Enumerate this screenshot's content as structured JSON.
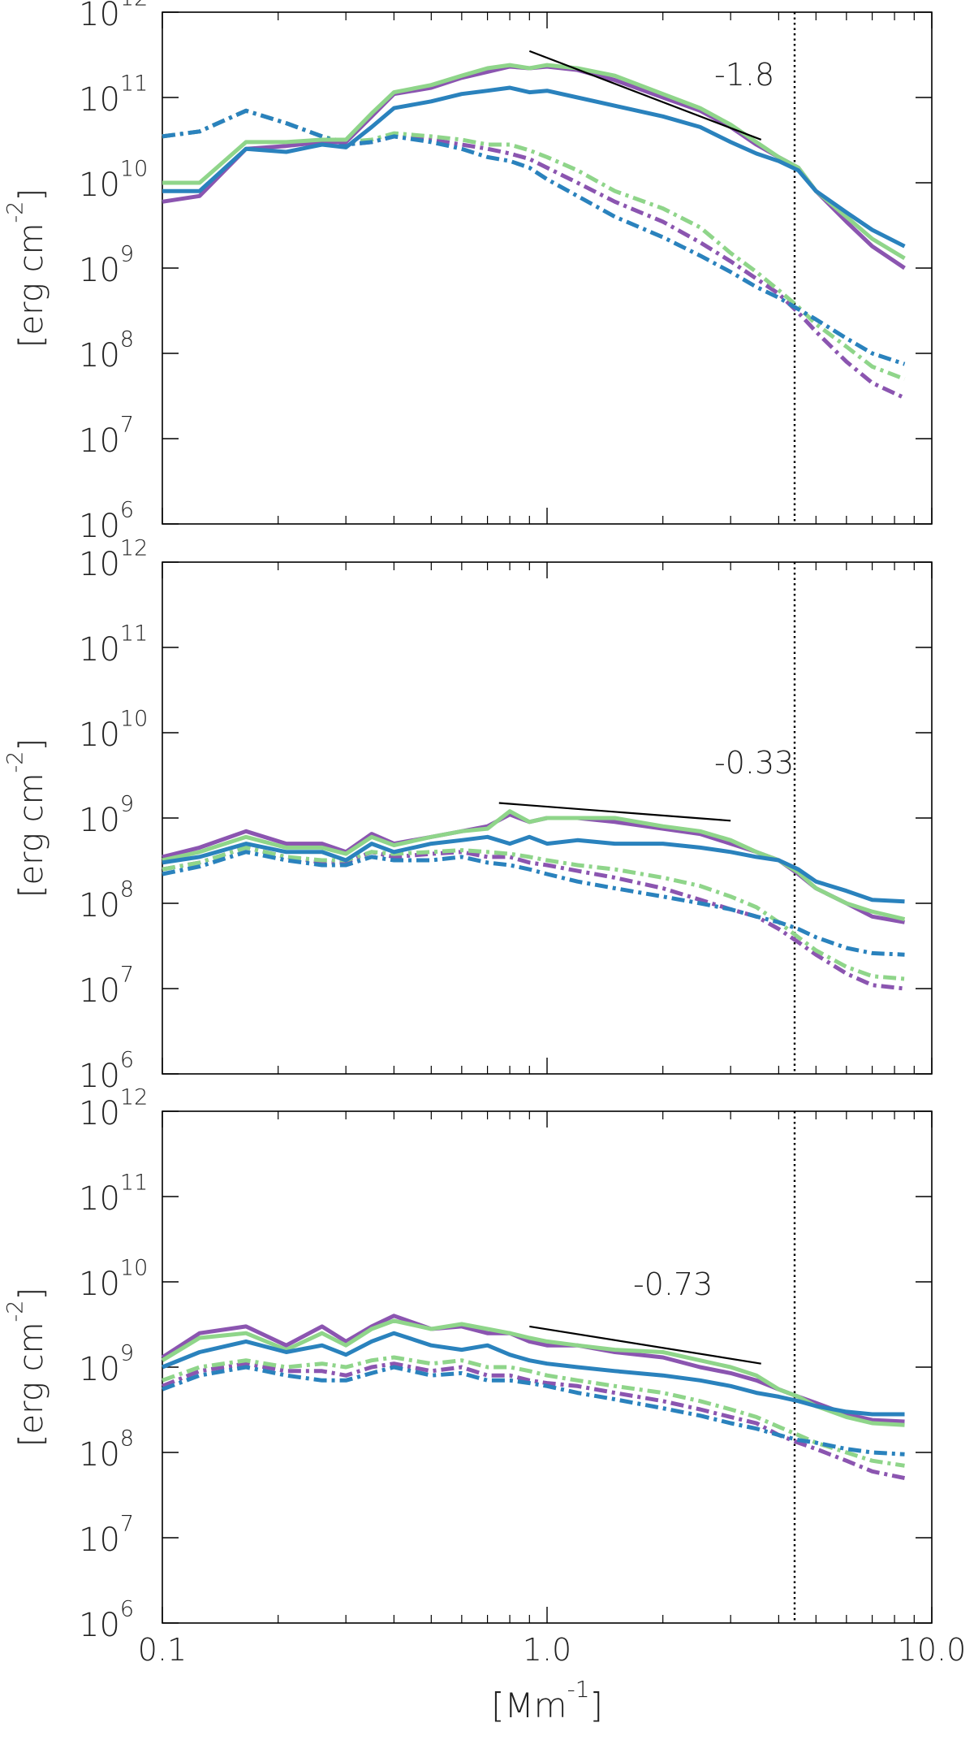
{
  "colors": {
    "purple": "#8b55b0",
    "green": "#8fd58a",
    "blue": "#2a82bd",
    "black": "#000000"
  },
  "xlabel": "[Mm^{-1}]",
  "ylabel": "[erg cm^{-2}]",
  "x_tick_labels": [
    "0.1",
    "1.0",
    "10.0"
  ],
  "y_tick_labels": [
    "10^{12}",
    "10^{11}",
    "10^{10}",
    "10^{9}",
    "10^{8}",
    "10^{7}",
    "10^{6}"
  ],
  "chart_data": [
    {
      "type": "line",
      "xscale": "log",
      "yscale": "log",
      "xlim": [
        0.1,
        10.0
      ],
      "ylim": [
        1000000.0,
        1000000000000.0
      ],
      "vertical_dotted_line_x": 4.4,
      "slope_label": "-1.8",
      "fit_line": {
        "x": [
          0.9,
          3.6
        ],
        "y": [
          350000000000.0,
          32000000000.0
        ]
      },
      "x": [
        0.1,
        0.125,
        0.165,
        0.21,
        0.26,
        0.3,
        0.35,
        0.4,
        0.5,
        0.6,
        0.7,
        0.8,
        0.9,
        1.0,
        1.2,
        1.5,
        2.0,
        2.5,
        3.0,
        3.5,
        4.0,
        4.5,
        5.0,
        6.0,
        7.0,
        8.5
      ],
      "series": [
        {
          "color": "purple",
          "style": "solid",
          "y": [
            6000000000.0,
            7000000000.0,
            25000000000.0,
            27000000000.0,
            30000000000.0,
            30000000000.0,
            60000000000.0,
            110000000000.0,
            130000000000.0,
            170000000000.0,
            200000000000.0,
            230000000000.0,
            220000000000.0,
            230000000000.0,
            210000000000.0,
            160000000000.0,
            100000000000.0,
            70000000000.0,
            45000000000.0,
            28000000000.0,
            20000000000.0,
            15000000000.0,
            8000000000.0,
            3500000000.0,
            1800000000.0,
            1000000000.0
          ]
        },
        {
          "color": "green",
          "style": "solid",
          "y": [
            10000000000.0,
            10000000000.0,
            30000000000.0,
            30000000000.0,
            32000000000.0,
            32000000000.0,
            65000000000.0,
            115000000000.0,
            140000000000.0,
            180000000000.0,
            220000000000.0,
            240000000000.0,
            220000000000.0,
            240000000000.0,
            220000000000.0,
            180000000000.0,
            110000000000.0,
            75000000000.0,
            48000000000.0,
            30000000000.0,
            20000000000.0,
            15000000000.0,
            8000000000.0,
            4000000000.0,
            2200000000.0,
            1300000000.0
          ]
        },
        {
          "color": "blue",
          "style": "solid",
          "y": [
            8000000000.0,
            8000000000.0,
            25000000000.0,
            23000000000.0,
            28000000000.0,
            26000000000.0,
            45000000000.0,
            75000000000.0,
            90000000000.0,
            110000000000.0,
            120000000000.0,
            130000000000.0,
            115000000000.0,
            120000000000.0,
            100000000000.0,
            80000000000.0,
            60000000000.0,
            45000000000.0,
            30000000000.0,
            22000000000.0,
            18000000000.0,
            14000000000.0,
            8000000000.0,
            4500000000.0,
            2800000000.0,
            1800000000.0
          ]
        },
        {
          "color": "purple",
          "style": "dashdot",
          "y": [
            35000000000.0,
            40000000000.0,
            70000000000.0,
            50000000000.0,
            35000000000.0,
            28000000000.0,
            30000000000.0,
            35000000000.0,
            32000000000.0,
            28000000000.0,
            25000000000.0,
            22000000000.0,
            19000000000.0,
            15000000000.0,
            10000000000.0,
            6000000000.0,
            3500000000.0,
            2000000000.0,
            1200000000.0,
            750000000.0,
            500000000.0,
            300000000.0,
            180000000.0,
            80000000.0,
            45000000.0,
            30000000.0
          ]
        },
        {
          "color": "green",
          "style": "dashdot",
          "y": [
            35000000000.0,
            40000000000.0,
            70000000000.0,
            50000000000.0,
            35000000000.0,
            30000000000.0,
            32000000000.0,
            38000000000.0,
            35000000000.0,
            32000000000.0,
            28000000000.0,
            28000000000.0,
            24000000000.0,
            20000000000.0,
            14000000000.0,
            8000000000.0,
            5000000000.0,
            3000000000.0,
            1500000000.0,
            900000000.0,
            550000000.0,
            350000000.0,
            220000000.0,
            120000000.0,
            70000000.0,
            50000000.0
          ]
        },
        {
          "color": "blue",
          "style": "dashdot",
          "y": [
            35000000000.0,
            40000000000.0,
            70000000000.0,
            50000000000.0,
            35000000000.0,
            28000000000.0,
            30000000000.0,
            35000000000.0,
            30000000000.0,
            25000000000.0,
            20000000000.0,
            18000000000.0,
            15000000000.0,
            11000000000.0,
            7000000000.0,
            4000000000.0,
            2300000000.0,
            1400000000.0,
            900000000.0,
            600000000.0,
            450000000.0,
            330000000.0,
            250000000.0,
            150000000.0,
            100000000.0,
            75000000.0
          ]
        }
      ]
    },
    {
      "type": "line",
      "xscale": "log",
      "yscale": "log",
      "xlim": [
        0.1,
        10.0
      ],
      "ylim": [
        1000000.0,
        1000000000000.0
      ],
      "vertical_dotted_line_x": 4.4,
      "slope_label": "-0.33",
      "fit_line": {
        "x": [
          0.75,
          3.0
        ],
        "y": [
          1500000000.0,
          930000000.0
        ]
      },
      "x": [
        0.1,
        0.125,
        0.165,
        0.21,
        0.26,
        0.3,
        0.35,
        0.4,
        0.5,
        0.6,
        0.7,
        0.8,
        0.9,
        1.0,
        1.2,
        1.5,
        2.0,
        2.5,
        3.0,
        3.5,
        4.0,
        4.5,
        5.0,
        6.0,
        7.0,
        8.5
      ],
      "series": [
        {
          "color": "purple",
          "style": "solid",
          "y": [
            350000000.0,
            450000000.0,
            700000000.0,
            500000000.0,
            500000000.0,
            400000000.0,
            650000000.0,
            500000000.0,
            600000000.0,
            700000000.0,
            800000000.0,
            1100000000.0,
            900000000.0,
            1000000000.0,
            1000000000.0,
            900000000.0,
            750000000.0,
            650000000.0,
            500000000.0,
            400000000.0,
            320000000.0,
            220000000.0,
            150000000.0,
            100000000.0,
            70000000.0,
            60000000.0
          ]
        },
        {
          "color": "green",
          "style": "solid",
          "y": [
            320000000.0,
            400000000.0,
            600000000.0,
            450000000.0,
            450000000.0,
            380000000.0,
            600000000.0,
            480000000.0,
            600000000.0,
            700000000.0,
            750000000.0,
            1200000000.0,
            900000000.0,
            1000000000.0,
            1000000000.0,
            1000000000.0,
            800000000.0,
            700000000.0,
            550000000.0,
            400000000.0,
            320000000.0,
            230000000.0,
            150000000.0,
            100000000.0,
            80000000.0,
            65000000.0
          ]
        },
        {
          "color": "blue",
          "style": "solid",
          "y": [
            300000000.0,
            350000000.0,
            500000000.0,
            400000000.0,
            400000000.0,
            320000000.0,
            500000000.0,
            400000000.0,
            500000000.0,
            550000000.0,
            600000000.0,
            500000000.0,
            600000000.0,
            500000000.0,
            550000000.0,
            500000000.0,
            500000000.0,
            450000000.0,
            400000000.0,
            350000000.0,
            320000000.0,
            250000000.0,
            180000000.0,
            140000000.0,
            110000000.0,
            105000000.0
          ]
        },
        {
          "color": "purple",
          "style": "dashdot",
          "y": [
            250000000.0,
            300000000.0,
            450000000.0,
            350000000.0,
            300000000.0,
            300000000.0,
            400000000.0,
            350000000.0,
            380000000.0,
            400000000.0,
            350000000.0,
            350000000.0,
            300000000.0,
            280000000.0,
            240000000.0,
            200000000.0,
            150000000.0,
            110000000.0,
            85000000.0,
            70000000.0,
            50000000.0,
            35000000.0,
            25000000.0,
            15000000.0,
            11000000.0,
            10000000.0
          ]
        },
        {
          "color": "green",
          "style": "dashdot",
          "y": [
            250000000.0,
            300000000.0,
            450000000.0,
            350000000.0,
            320000000.0,
            320000000.0,
            400000000.0,
            380000000.0,
            400000000.0,
            420000000.0,
            400000000.0,
            380000000.0,
            350000000.0,
            320000000.0,
            280000000.0,
            250000000.0,
            200000000.0,
            160000000.0,
            120000000.0,
            90000000.0,
            60000000.0,
            40000000.0,
            28000000.0,
            18000000.0,
            14000000.0,
            13000000.0
          ]
        },
        {
          "color": "blue",
          "style": "dashdot",
          "y": [
            220000000.0,
            270000000.0,
            400000000.0,
            320000000.0,
            280000000.0,
            280000000.0,
            350000000.0,
            320000000.0,
            320000000.0,
            350000000.0,
            300000000.0,
            280000000.0,
            250000000.0,
            220000000.0,
            180000000.0,
            150000000.0,
            120000000.0,
            100000000.0,
            85000000.0,
            70000000.0,
            60000000.0,
            50000000.0,
            40000000.0,
            30000000.0,
            26000000.0,
            25000000.0
          ]
        }
      ]
    },
    {
      "type": "line",
      "xscale": "log",
      "yscale": "log",
      "xlim": [
        0.1,
        10.0
      ],
      "ylim": [
        1000000.0,
        1000000000000.0
      ],
      "vertical_dotted_line_x": 4.4,
      "slope_label": "-0.73",
      "fit_line": {
        "x": [
          0.9,
          3.6
        ],
        "y": [
          3000000000.0,
          1100000000.0
        ]
      },
      "x": [
        0.1,
        0.125,
        0.165,
        0.21,
        0.26,
        0.3,
        0.35,
        0.4,
        0.5,
        0.6,
        0.7,
        0.8,
        0.9,
        1.0,
        1.2,
        1.5,
        2.0,
        2.5,
        3.0,
        3.5,
        4.0,
        4.5,
        5.0,
        6.0,
        7.0,
        8.5
      ],
      "series": [
        {
          "color": "purple",
          "style": "solid",
          "y": [
            1300000000.0,
            2500000000.0,
            3000000000.0,
            1800000000.0,
            3000000000.0,
            2000000000.0,
            3000000000.0,
            4000000000.0,
            2800000000.0,
            3000000000.0,
            2500000000.0,
            2500000000.0,
            2000000000.0,
            1800000000.0,
            1800000000.0,
            1500000000.0,
            1300000000.0,
            1000000000.0,
            850000000.0,
            700000000.0,
            550000000.0,
            450000000.0,
            380000000.0,
            280000000.0,
            240000000.0,
            230000000.0
          ]
        },
        {
          "color": "green",
          "style": "solid",
          "y": [
            1200000000.0,
            2200000000.0,
            2500000000.0,
            1600000000.0,
            2500000000.0,
            1800000000.0,
            2800000000.0,
            3500000000.0,
            2800000000.0,
            3200000000.0,
            2800000000.0,
            2500000000.0,
            2200000000.0,
            2000000000.0,
            1800000000.0,
            1600000000.0,
            1500000000.0,
            1200000000.0,
            1000000000.0,
            800000000.0,
            550000000.0,
            450000000.0,
            350000000.0,
            260000000.0,
            220000000.0,
            210000000.0
          ]
        },
        {
          "color": "blue",
          "style": "solid",
          "y": [
            1000000000.0,
            1500000000.0,
            2000000000.0,
            1500000000.0,
            1800000000.0,
            1400000000.0,
            2000000000.0,
            2500000000.0,
            1800000000.0,
            1600000000.0,
            1800000000.0,
            1400000000.0,
            1200000000.0,
            1100000000.0,
            1000000000.0,
            900000000.0,
            800000000.0,
            700000000.0,
            600000000.0,
            500000000.0,
            450000000.0,
            400000000.0,
            350000000.0,
            300000000.0,
            280000000.0,
            280000000.0
          ]
        },
        {
          "color": "purple",
          "style": "dashdot",
          "y": [
            600000000.0,
            900000000.0,
            1100000000.0,
            900000000.0,
            900000000.0,
            800000000.0,
            1000000000.0,
            1100000000.0,
            900000000.0,
            1000000000.0,
            800000000.0,
            800000000.0,
            700000000.0,
            650000000.0,
            600000000.0,
            500000000.0,
            400000000.0,
            320000000.0,
            260000000.0,
            220000000.0,
            160000000.0,
            130000000.0,
            110000000.0,
            80000000.0,
            60000000.0,
            50000000.0
          ]
        },
        {
          "color": "green",
          "style": "dashdot",
          "y": [
            700000000.0,
            1000000000.0,
            1200000000.0,
            1000000000.0,
            1100000000.0,
            1000000000.0,
            1200000000.0,
            1300000000.0,
            1100000000.0,
            1200000000.0,
            1000000000.0,
            1000000000.0,
            900000000.0,
            800000000.0,
            700000000.0,
            600000000.0,
            500000000.0,
            400000000.0,
            320000000.0,
            260000000.0,
            200000000.0,
            160000000.0,
            130000000.0,
            100000000.0,
            80000000.0,
            70000000.0
          ]
        },
        {
          "color": "blue",
          "style": "dashdot",
          "y": [
            550000000.0,
            800000000.0,
            1000000000.0,
            800000000.0,
            700000000.0,
            700000000.0,
            850000000.0,
            1000000000.0,
            800000000.0,
            850000000.0,
            700000000.0,
            700000000.0,
            650000000.0,
            600000000.0,
            500000000.0,
            420000000.0,
            330000000.0,
            270000000.0,
            220000000.0,
            190000000.0,
            160000000.0,
            140000000.0,
            130000000.0,
            110000000.0,
            100000000.0,
            95000000.0
          ]
        }
      ]
    }
  ]
}
